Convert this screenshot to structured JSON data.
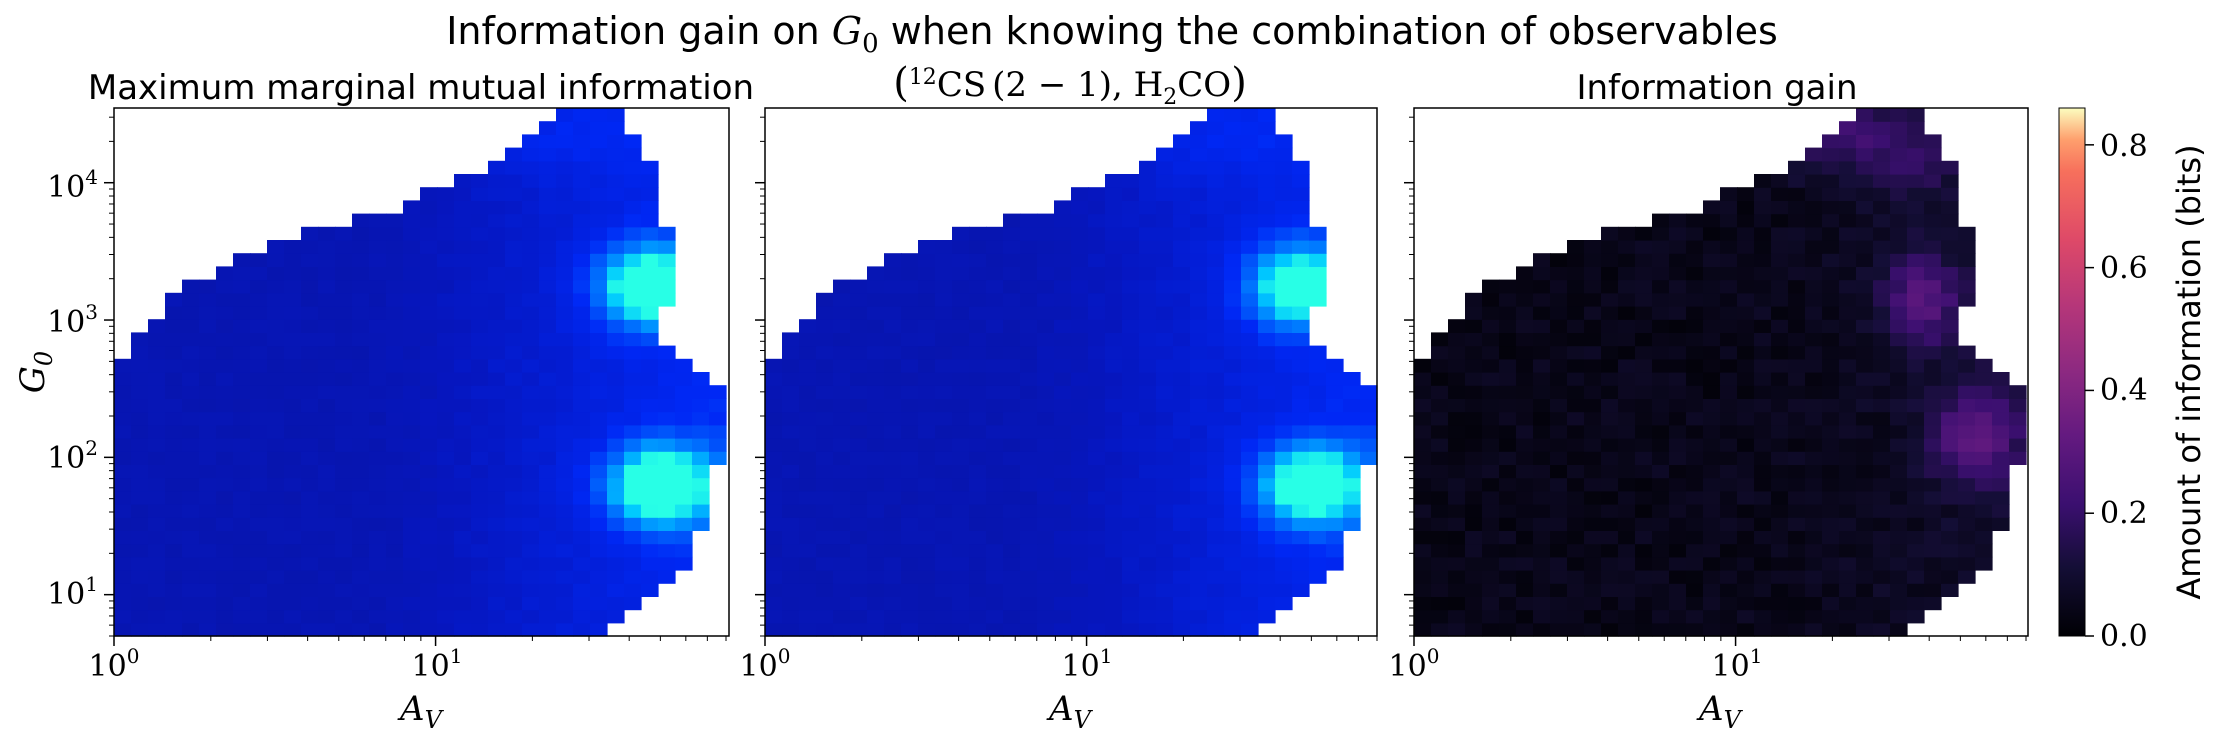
{
  "figure": {
    "suptitle_prefix": "Information gain on ",
    "suptitle_var": "G",
    "suptitle_var_sub": "0",
    "suptitle_suffix": " when knowing the combination of observables"
  },
  "panels": [
    {
      "title": "Maximum marginal mutual information"
    },
    {
      "title_parts": {
        "open": "(",
        "iso": "12",
        "mol1": "CS",
        "trans": "(2 − 1)",
        "sep": ", H",
        "sub": "2",
        "mol2": "CO",
        "close": ")"
      }
    },
    {
      "title": "Information gain"
    }
  ],
  "axes": {
    "x_var": "A",
    "x_sub": "V",
    "y_var": "G",
    "y_sub": "0",
    "x_tick_base": "10",
    "x_tick_exps": [
      "0",
      "1"
    ],
    "y_tick_base": "10",
    "y_tick_exps": [
      "1",
      "2",
      "3",
      "4"
    ]
  },
  "colorbar": {
    "label": "Amount of information (bits)",
    "ticks": [
      "0.0",
      "0.2",
      "0.4",
      "0.6",
      "0.8"
    ]
  },
  "chart_data": {
    "type": "heatmap",
    "x_scale": "log",
    "y_scale": "log",
    "xlim": [
      1,
      80
    ],
    "ylim": [
      5,
      35000
    ],
    "colormap_panels_1_2": "blue (low) to cyan (high)",
    "colormap_panel_3": "magma",
    "color_range": [
      0.0,
      0.86
    ],
    "hotspots": {
      "max_marginal": [
        {
          "A_V": 45,
          "G_0": 1500,
          "level": "high"
        },
        {
          "A_V": 45,
          "G_0": 60,
          "level": "high"
        }
      ],
      "combination": [
        {
          "A_V": 45,
          "G_0": 1500,
          "level": "high"
        },
        {
          "A_V": 45,
          "G_0": 60,
          "level": "high"
        }
      ],
      "information_gain": [
        {
          "A_V": 35,
          "G_0": 1500,
          "value": 0.25
        },
        {
          "A_V": 50,
          "G_0": 150,
          "value": 0.25
        },
        {
          "A_V": 20,
          "G_0": 25000,
          "value": 0.2
        }
      ]
    }
  }
}
